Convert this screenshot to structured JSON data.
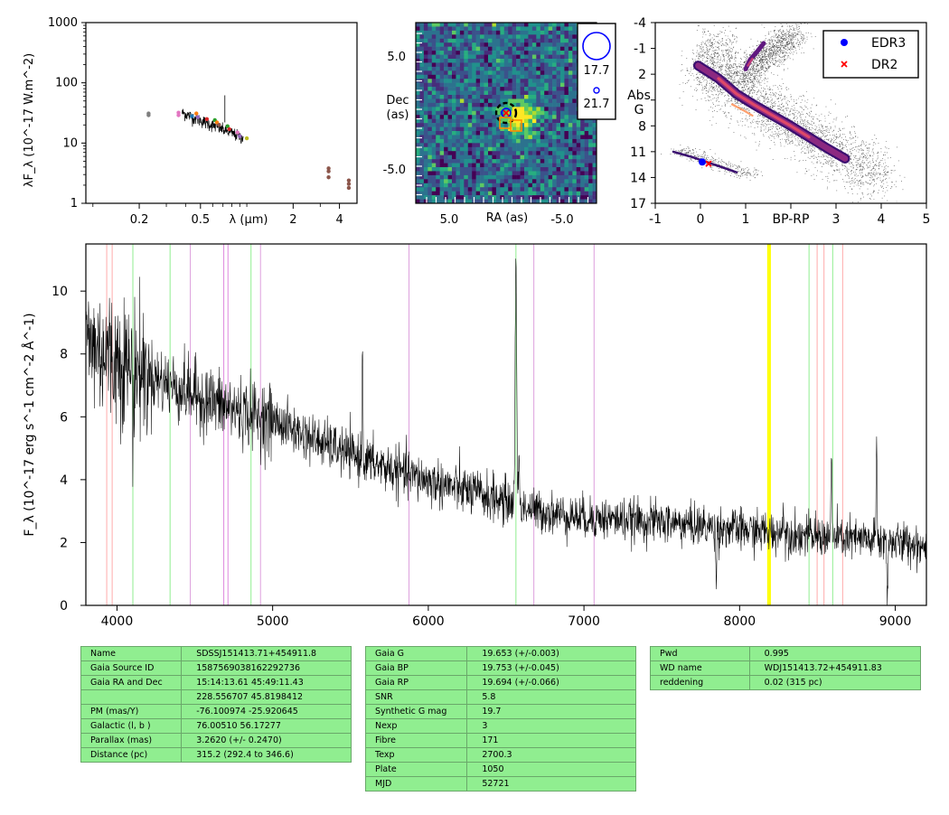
{
  "chart_data": [
    {
      "id": "sed",
      "type": "scatter",
      "xlabel": "λ (μm)",
      "ylabel": "λF_λ (10^-17 W.m^-2)",
      "xscale": "log",
      "yscale": "log",
      "xlim": [
        0.09,
        5.2
      ],
      "ylim": [
        1,
        1000
      ],
      "xticks": [
        "0.2",
        "0.5",
        "2",
        "4"
      ],
      "yticks": [
        "1",
        "10",
        "100",
        "1000"
      ],
      "points": [
        {
          "x": 0.23,
          "y": 31,
          "color": "#7f7f7f"
        },
        {
          "x": 0.23,
          "y": 29,
          "color": "#7f7f7f"
        },
        {
          "x": 0.36,
          "y": 32,
          "color": "#e377c2"
        },
        {
          "x": 0.36,
          "y": 29,
          "color": "#e377c2"
        },
        {
          "x": 0.44,
          "y": 28,
          "color": "#1f77b4"
        },
        {
          "x": 0.47,
          "y": 31,
          "color": "#ff7f0e"
        },
        {
          "x": 0.48,
          "y": 27,
          "color": "#9467bd"
        },
        {
          "x": 0.55,
          "y": 25,
          "color": "#d62728"
        },
        {
          "x": 0.62,
          "y": 24,
          "color": "#2ca02c"
        },
        {
          "x": 0.64,
          "y": 22,
          "color": "#ff7f0e"
        },
        {
          "x": 0.66,
          "y": 20,
          "color": "#8c564b"
        },
        {
          "x": 0.75,
          "y": 19,
          "color": "#2ca02c"
        },
        {
          "x": 0.77,
          "y": 17,
          "color": "#d62728"
        },
        {
          "x": 0.87,
          "y": 15,
          "color": "#e377c2"
        },
        {
          "x": 0.9,
          "y": 13,
          "color": "#9467bd"
        },
        {
          "x": 1.0,
          "y": 12,
          "color": "#bcbd22"
        },
        {
          "x": 3.4,
          "y": 3.8,
          "color": "#8c564b"
        },
        {
          "x": 3.4,
          "y": 3.4,
          "color": "#8c564b"
        },
        {
          "x": 3.4,
          "y": 2.7,
          "color": "#8c564b"
        },
        {
          "x": 4.6,
          "y": 2.4,
          "color": "#8c564b"
        },
        {
          "x": 4.6,
          "y": 2.1,
          "color": "#8c564b"
        },
        {
          "x": 4.6,
          "y": 1.8,
          "color": "#8c564b"
        }
      ]
    },
    {
      "id": "image",
      "type": "heatmap",
      "xlabel": "RA (as)",
      "ylabel": "Dec (as)",
      "xticks": [
        "5.0",
        "-5.0"
      ],
      "yticks": [
        "5.0",
        "-5.0"
      ],
      "legend_mags": [
        "17.7",
        "21.7"
      ]
    },
    {
      "id": "hrd",
      "type": "scatter",
      "xlabel": "BP-RP",
      "ylabel": "Abs G",
      "xlim": [
        -1,
        5
      ],
      "ylim": [
        17,
        -4
      ],
      "xticks": [
        "-1",
        "0",
        "1",
        "BP-RP",
        "3",
        "4",
        "5"
      ],
      "yticks": [
        "-4",
        "-1",
        "2",
        "5",
        "8",
        "11",
        "14",
        "17"
      ],
      "legend": [
        {
          "label": "EDR3",
          "color": "#0000ff",
          "marker": "circle"
        },
        {
          "label": "DR2",
          "color": "#ff0000",
          "marker": "x"
        }
      ],
      "points": [
        {
          "series": "EDR3",
          "x": 0.04,
          "y": 12.2
        },
        {
          "series": "DR2",
          "x": 0.18,
          "y": 12.4
        }
      ]
    },
    {
      "id": "spectrum",
      "type": "line",
      "xlabel": "",
      "ylabel": "F_λ (10^-17 erg s^-1 cm^-2 Å^-1)",
      "xlim": [
        3800,
        9200
      ],
      "ylim": [
        0,
        11.5
      ],
      "xticks": [
        "4000",
        "5000",
        "6000",
        "7000",
        "8000",
        "9000"
      ],
      "yticks": [
        "0",
        "2",
        "4",
        "6",
        "8",
        "10"
      ],
      "continuum": [
        [
          3800,
          8.4
        ],
        [
          3950,
          8.0
        ],
        [
          4100,
          7.6
        ],
        [
          4300,
          7.1
        ],
        [
          4500,
          6.7
        ],
        [
          4700,
          6.3
        ],
        [
          5000,
          5.9
        ],
        [
          5300,
          5.2
        ],
        [
          5600,
          4.6
        ],
        [
          5900,
          4.1
        ],
        [
          6200,
          3.7
        ],
        [
          6500,
          3.3
        ],
        [
          6700,
          3.0
        ],
        [
          7000,
          2.8
        ],
        [
          7500,
          2.65
        ],
        [
          8000,
          2.4
        ],
        [
          8500,
          2.2
        ],
        [
          9000,
          2.0
        ],
        [
          9200,
          1.9
        ]
      ],
      "features": [
        {
          "x": 3972,
          "dy": -0.6
        },
        {
          "x": 4102,
          "dy": -2.4
        },
        {
          "x": 5577,
          "dy": 3.6
        },
        {
          "x": 6563,
          "dy": 7.8
        },
        {
          "x": 6583,
          "dy": 1.5
        },
        {
          "x": 8590,
          "dy": 2.8
        },
        {
          "x": 8880,
          "dy": 3.2
        },
        {
          "x": 8280,
          "dy": 1.2
        },
        {
          "x": 7850,
          "dy": -1.6
        },
        {
          "x": 8950,
          "dy": -1.8
        }
      ],
      "lines": [
        {
          "x": 3934,
          "color": "#ffaaaa"
        },
        {
          "x": 3969,
          "color": "#ffaaaa"
        },
        {
          "x": 4102,
          "color": "#90ee90"
        },
        {
          "x": 4341,
          "color": "#90ee90"
        },
        {
          "x": 4471,
          "color": "#dda0dd"
        },
        {
          "x": 4686,
          "color": "#dd88dd"
        },
        {
          "x": 4713,
          "color": "#dd88dd"
        },
        {
          "x": 4861,
          "color": "#90ee90"
        },
        {
          "x": 4922,
          "color": "#dda0dd"
        },
        {
          "x": 5876,
          "color": "#dda0dd"
        },
        {
          "x": 6563,
          "color": "#90ee90"
        },
        {
          "x": 6678,
          "color": "#dda0dd"
        },
        {
          "x": 7065,
          "color": "#dda0dd"
        },
        {
          "x": 8183,
          "color": "#ffff00",
          "width": 2
        },
        {
          "x": 8195,
          "color": "#ffff00",
          "width": 2
        },
        {
          "x": 8446,
          "color": "#90ee90"
        },
        {
          "x": 8498,
          "color": "#ffaaaa"
        },
        {
          "x": 8542,
          "color": "#ffaaaa"
        },
        {
          "x": 8598,
          "color": "#90ee90"
        },
        {
          "x": 8662,
          "color": "#ffaaaa"
        }
      ]
    }
  ],
  "tables": {
    "left": [
      [
        "Name",
        "SDSSJ151413.71+454911.8"
      ],
      [
        "Gaia Source ID",
        "1587569038162292736"
      ],
      [
        "Gaia RA and Dec",
        "15:14:13.61    45:49:11.43"
      ],
      [
        "",
        "228.556707    45.8198412"
      ],
      [
        "PM (mas/Y)",
        "-76.100974    -25.920645"
      ],
      [
        "Galactic (l, b )",
        "76.00510    56.17277"
      ],
      [
        "Parallax (mas)",
        "3.2620 (+/- 0.2470)"
      ],
      [
        "Distance (pc)",
        "315.2 (292.4 to 346.6)"
      ]
    ],
    "middle": [
      [
        "Gaia G",
        "19.653 (+/-0.003)"
      ],
      [
        "Gaia BP",
        "19.753 (+/-0.045)"
      ],
      [
        "Gaia RP",
        "19.694 (+/-0.066)"
      ],
      [
        "SNR",
        "5.8"
      ],
      [
        "Synthetic G mag",
        "19.7"
      ],
      [
        "Nexp",
        "3"
      ],
      [
        "Fibre",
        "171"
      ],
      [
        "Texp",
        "2700.3"
      ],
      [
        "Plate",
        "1050"
      ],
      [
        "MJD",
        "52721"
      ]
    ],
    "right": [
      [
        "Pwd",
        "0.995"
      ],
      [
        "WD name",
        "WDJ151413.72+454911.83"
      ],
      [
        "reddening",
        "0.02 (315 pc)"
      ]
    ]
  }
}
